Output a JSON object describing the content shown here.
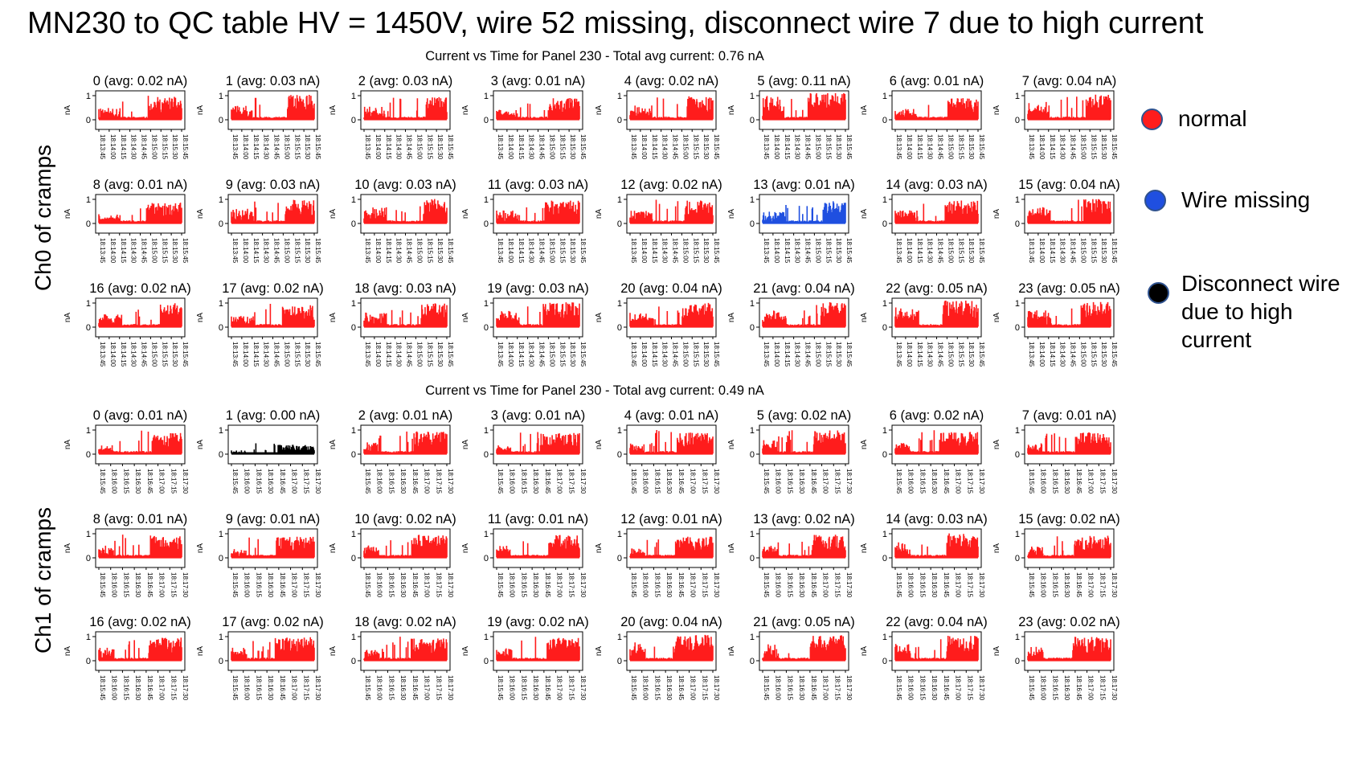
{
  "slide_title": "MN230 to QC table HV = 1450V, wire 52 missing, disconnect wire 7 due to high current",
  "groups": [
    {
      "title": "Current vs Time for Panel 230 - Total avg current: 0.76 nA",
      "side_label": "Ch0 of cramps",
      "x_ticks": [
        "18:13:45",
        "18:14:00",
        "18:14:15",
        "18:14:30",
        "18:14:45",
        "18:15:00",
        "18:15:15",
        "18:15:30",
        "18:15:45"
      ],
      "ylabel": "nA",
      "y_ticks": [
        "0",
        "1"
      ],
      "panels": [
        {
          "label": "0 (avg: 0.02 nA)",
          "avg": 0.02,
          "status": "normal"
        },
        {
          "label": "1 (avg: 0.03 nA)",
          "avg": 0.03,
          "status": "normal"
        },
        {
          "label": "2 (avg: 0.03 nA)",
          "avg": 0.03,
          "status": "normal"
        },
        {
          "label": "3 (avg: 0.01 nA)",
          "avg": 0.01,
          "status": "normal"
        },
        {
          "label": "4 (avg: 0.02 nA)",
          "avg": 0.02,
          "status": "normal"
        },
        {
          "label": "5 (avg: 0.11 nA)",
          "avg": 0.11,
          "status": "normal"
        },
        {
          "label": "6 (avg: 0.01 nA)",
          "avg": 0.01,
          "status": "normal"
        },
        {
          "label": "7 (avg: 0.04 nA)",
          "avg": 0.04,
          "status": "normal"
        },
        {
          "label": "8 (avg: 0.01 nA)",
          "avg": 0.01,
          "status": "normal"
        },
        {
          "label": "9 (avg: 0.03 nA)",
          "avg": 0.03,
          "status": "normal"
        },
        {
          "label": "10 (avg: 0.03 nA)",
          "avg": 0.03,
          "status": "normal"
        },
        {
          "label": "11 (avg: 0.03 nA)",
          "avg": 0.03,
          "status": "normal"
        },
        {
          "label": "12 (avg: 0.02 nA)",
          "avg": 0.02,
          "status": "normal"
        },
        {
          "label": "13 (avg: 0.01 nA)",
          "avg": 0.01,
          "status": "missing"
        },
        {
          "label": "14 (avg: 0.03 nA)",
          "avg": 0.03,
          "status": "normal"
        },
        {
          "label": "15 (avg: 0.04 nA)",
          "avg": 0.04,
          "status": "normal"
        },
        {
          "label": "16 (avg: 0.02 nA)",
          "avg": 0.02,
          "status": "normal"
        },
        {
          "label": "17 (avg: 0.02 nA)",
          "avg": 0.02,
          "status": "normal"
        },
        {
          "label": "18 (avg: 0.03 nA)",
          "avg": 0.03,
          "status": "normal"
        },
        {
          "label": "19 (avg: 0.03 nA)",
          "avg": 0.03,
          "status": "normal"
        },
        {
          "label": "20 (avg: 0.04 nA)",
          "avg": 0.04,
          "status": "normal"
        },
        {
          "label": "21 (avg: 0.04 nA)",
          "avg": 0.04,
          "status": "normal"
        },
        {
          "label": "22 (avg: 0.05 nA)",
          "avg": 0.05,
          "status": "normal"
        },
        {
          "label": "23 (avg: 0.05 nA)",
          "avg": 0.05,
          "status": "normal"
        }
      ]
    },
    {
      "title": "Current vs Time for Panel 230 - Total avg current: 0.49 nA",
      "side_label": "Ch1 of cramps",
      "x_ticks": [
        "18:15:45",
        "18:16:00",
        "18:16:15",
        "18:16:30",
        "18:16:45",
        "18:17:00",
        "18:17:15",
        "18:17:30"
      ],
      "ylabel": "nA",
      "y_ticks": [
        "0",
        "1"
      ],
      "panels": [
        {
          "label": "0 (avg: 0.01 nA)",
          "avg": 0.01,
          "status": "normal"
        },
        {
          "label": "1 (avg: 0.00 nA)",
          "avg": 0.0,
          "status": "disconnected"
        },
        {
          "label": "2 (avg: 0.01 nA)",
          "avg": 0.01,
          "status": "normal"
        },
        {
          "label": "3 (avg: 0.01 nA)",
          "avg": 0.01,
          "status": "normal"
        },
        {
          "label": "4 (avg: 0.01 nA)",
          "avg": 0.01,
          "status": "normal"
        },
        {
          "label": "5 (avg: 0.02 nA)",
          "avg": 0.02,
          "status": "normal"
        },
        {
          "label": "6 (avg: 0.02 nA)",
          "avg": 0.02,
          "status": "normal"
        },
        {
          "label": "7 (avg: 0.01 nA)",
          "avg": 0.01,
          "status": "normal"
        },
        {
          "label": "8 (avg: 0.01 nA)",
          "avg": 0.01,
          "status": "normal"
        },
        {
          "label": "9 (avg: 0.01 nA)",
          "avg": 0.01,
          "status": "normal"
        },
        {
          "label": "10 (avg: 0.02 nA)",
          "avg": 0.02,
          "status": "normal"
        },
        {
          "label": "11 (avg: 0.01 nA)",
          "avg": 0.01,
          "status": "normal"
        },
        {
          "label": "12 (avg: 0.01 nA)",
          "avg": 0.01,
          "status": "normal"
        },
        {
          "label": "13 (avg: 0.02 nA)",
          "avg": 0.02,
          "status": "normal"
        },
        {
          "label": "14 (avg: 0.03 nA)",
          "avg": 0.03,
          "status": "normal"
        },
        {
          "label": "15 (avg: 0.02 nA)",
          "avg": 0.02,
          "status": "normal"
        },
        {
          "label": "16 (avg: 0.02 nA)",
          "avg": 0.02,
          "status": "normal"
        },
        {
          "label": "17 (avg: 0.02 nA)",
          "avg": 0.02,
          "status": "normal"
        },
        {
          "label": "18 (avg: 0.02 nA)",
          "avg": 0.02,
          "status": "normal"
        },
        {
          "label": "19 (avg: 0.02 nA)",
          "avg": 0.02,
          "status": "normal"
        },
        {
          "label": "20 (avg: 0.04 nA)",
          "avg": 0.04,
          "status": "normal"
        },
        {
          "label": "21 (avg: 0.05 nA)",
          "avg": 0.05,
          "status": "normal"
        },
        {
          "label": "22 (avg: 0.04 nA)",
          "avg": 0.04,
          "status": "normal"
        },
        {
          "label": "23 (avg: 0.02 nA)",
          "avg": 0.02,
          "status": "normal"
        }
      ]
    }
  ],
  "legend": [
    {
      "label": "normal",
      "color": "#ff1c1c",
      "status": "normal"
    },
    {
      "label": "Wire missing",
      "color": "#1f4fe0",
      "status": "missing"
    },
    {
      "label": "Disconnect wire due to high current",
      "color": "#000000",
      "status": "disconnected"
    }
  ],
  "status_colors": {
    "normal": "#ff1c1c",
    "missing": "#1f4fe0",
    "disconnected": "#000000"
  },
  "chart_data": [
    {
      "type": "line",
      "title": "Current vs Time for Panel 230 - Total avg current: 0.76 nA",
      "ylabel": "nA",
      "ylim": [
        0,
        1
      ],
      "x_range": [
        "18:13:45",
        "18:15:45"
      ],
      "panel_count": 24,
      "grid": false,
      "series_avg_nA": [
        0.02,
        0.03,
        0.03,
        0.01,
        0.02,
        0.11,
        0.01,
        0.04,
        0.01,
        0.03,
        0.03,
        0.03,
        0.02,
        0.01,
        0.03,
        0.04,
        0.02,
        0.02,
        0.03,
        0.03,
        0.04,
        0.04,
        0.05,
        0.05
      ]
    },
    {
      "type": "line",
      "title": "Current vs Time for Panel 230 - Total avg current: 0.49 nA",
      "ylabel": "nA",
      "ylim": [
        0,
        1
      ],
      "x_range": [
        "18:15:45",
        "18:17:30"
      ],
      "panel_count": 24,
      "grid": false,
      "series_avg_nA": [
        0.01,
        0.0,
        0.01,
        0.01,
        0.01,
        0.02,
        0.02,
        0.01,
        0.01,
        0.01,
        0.02,
        0.01,
        0.01,
        0.02,
        0.03,
        0.02,
        0.02,
        0.02,
        0.02,
        0.02,
        0.04,
        0.05,
        0.04,
        0.02
      ]
    }
  ]
}
